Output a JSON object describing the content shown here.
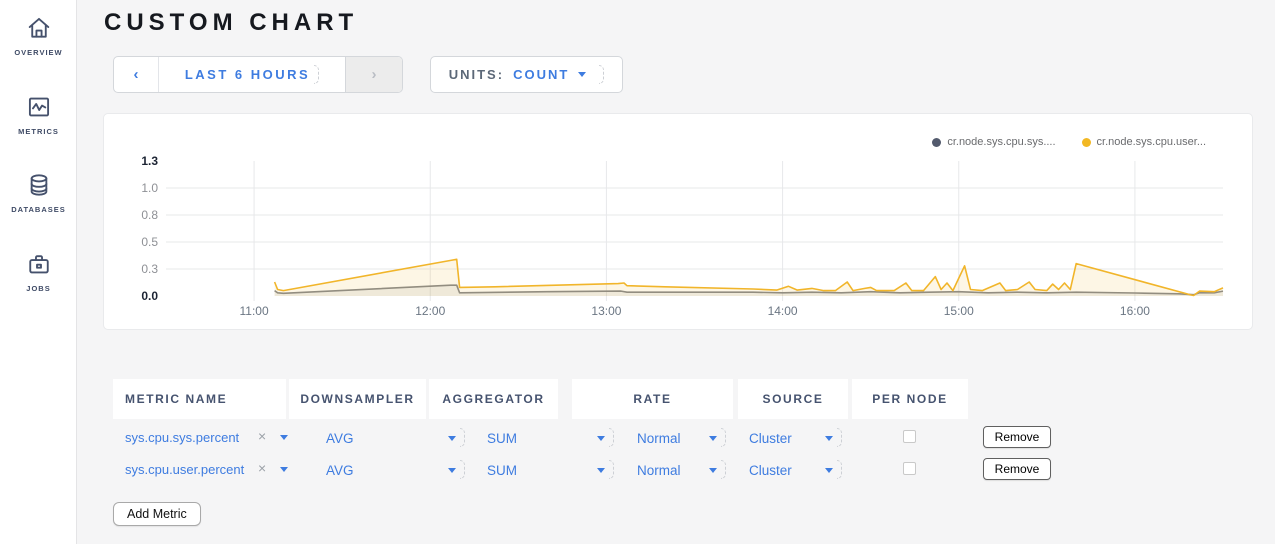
{
  "sidebar": {
    "items": [
      {
        "label": "OVERVIEW",
        "icon": "home-icon"
      },
      {
        "label": "METRICS",
        "icon": "metrics-icon"
      },
      {
        "label": "DATABASES",
        "icon": "database-icon"
      },
      {
        "label": "JOBS",
        "icon": "briefcase-icon"
      }
    ]
  },
  "header": {
    "title": "CUSTOM CHART"
  },
  "toolbar": {
    "prev_arrow": "‹",
    "time_range": "LAST 6 HOURS",
    "next_arrow": "›",
    "units_label": "UNITS:",
    "units_value": "COUNT"
  },
  "chart_data": {
    "type": "area",
    "legend_position": "top-right",
    "grid": true,
    "axis": {
      "x_domain_minutes": [
        0,
        360
      ],
      "y_domain": [
        0,
        1.25
      ]
    },
    "x_ticks": [
      {
        "label": "11:00",
        "t": 30
      },
      {
        "label": "12:00",
        "t": 90
      },
      {
        "label": "13:00",
        "t": 150
      },
      {
        "label": "14:00",
        "t": 210
      },
      {
        "label": "15:00",
        "t": 270
      },
      {
        "label": "16:00",
        "t": 330
      }
    ],
    "y_ticks": [
      {
        "label": "1.3",
        "value": 1.25,
        "bold": true,
        "grid": false
      },
      {
        "label": "1.0",
        "value": 1.0,
        "bold": false,
        "grid": true
      },
      {
        "label": "0.8",
        "value": 0.75,
        "bold": false,
        "grid": true
      },
      {
        "label": "0.5",
        "value": 0.5,
        "bold": false,
        "grid": true
      },
      {
        "label": "0.3",
        "value": 0.25,
        "bold": false,
        "grid": true
      },
      {
        "label": "0.0",
        "value": 0.0,
        "bold": true,
        "grid": false
      }
    ],
    "series": [
      {
        "name": "cr.node.sys.cpu.sys....",
        "color": "#535a6d",
        "line_color": "#86888c",
        "fill_color": "rgba(110,115,125,0.10)",
        "points": [
          [
            37,
            0.05
          ],
          [
            38,
            0.03
          ],
          [
            40,
            0.025
          ],
          [
            97,
            0.1
          ],
          [
            99,
            0.1
          ],
          [
            100,
            0.03
          ],
          [
            130,
            0.04
          ],
          [
            155,
            0.045
          ],
          [
            157,
            0.035
          ],
          [
            200,
            0.035
          ],
          [
            210,
            0.03
          ],
          [
            220,
            0.035
          ],
          [
            230,
            0.03
          ],
          [
            240,
            0.04
          ],
          [
            250,
            0.03
          ],
          [
            260,
            0.035
          ],
          [
            270,
            0.04
          ],
          [
            280,
            0.03
          ],
          [
            290,
            0.035
          ],
          [
            300,
            0.03
          ],
          [
            310,
            0.035
          ],
          [
            330,
            0.028
          ],
          [
            345,
            0.02
          ],
          [
            350,
            0.012
          ],
          [
            352,
            0.03
          ],
          [
            357,
            0.03
          ],
          [
            360,
            0.045
          ]
        ]
      },
      {
        "name": "cr.node.sys.cpu.user...",
        "color": "#f2b824",
        "line_color": "#f1b52a",
        "fill_color": "rgba(241,181,42,0.12)",
        "points": [
          [
            37,
            0.13
          ],
          [
            38,
            0.06
          ],
          [
            40,
            0.05
          ],
          [
            97,
            0.33
          ],
          [
            99,
            0.34
          ],
          [
            100,
            0.08
          ],
          [
            112,
            0.085
          ],
          [
            154,
            0.115
          ],
          [
            156,
            0.12
          ],
          [
            157,
            0.095
          ],
          [
            170,
            0.085
          ],
          [
            200,
            0.065
          ],
          [
            208,
            0.055
          ],
          [
            212,
            0.09
          ],
          [
            215,
            0.055
          ],
          [
            220,
            0.07
          ],
          [
            224,
            0.05
          ],
          [
            228,
            0.05
          ],
          [
            232,
            0.13
          ],
          [
            234,
            0.05
          ],
          [
            238,
            0.07
          ],
          [
            240,
            0.08
          ],
          [
            242,
            0.05
          ],
          [
            248,
            0.05
          ],
          [
            252,
            0.12
          ],
          [
            254,
            0.05
          ],
          [
            258,
            0.05
          ],
          [
            262,
            0.18
          ],
          [
            264,
            0.06
          ],
          [
            266,
            0.12
          ],
          [
            268,
            0.05
          ],
          [
            272,
            0.28
          ],
          [
            274,
            0.06
          ],
          [
            278,
            0.05
          ],
          [
            284,
            0.12
          ],
          [
            286,
            0.05
          ],
          [
            290,
            0.06
          ],
          [
            294,
            0.13
          ],
          [
            296,
            0.06
          ],
          [
            300,
            0.05
          ],
          [
            302,
            0.11
          ],
          [
            304,
            0.06
          ],
          [
            306,
            0.12
          ],
          [
            308,
            0.06
          ],
          [
            310,
            0.3
          ],
          [
            349,
            0.01
          ],
          [
            350,
            0.005
          ],
          [
            352,
            0.045
          ],
          [
            357,
            0.04
          ],
          [
            360,
            0.075
          ]
        ]
      }
    ]
  },
  "table": {
    "headers": [
      "METRIC NAME",
      "DOWNSAMPLER",
      "AGGREGATOR",
      "RATE",
      "SOURCE",
      "PER NODE"
    ],
    "rows": [
      {
        "metric": "sys.cpu.sys.percent",
        "remove_metric": "×",
        "downsampler": "AVG",
        "aggregator": "SUM",
        "rate": "Normal",
        "source": "Cluster",
        "per_node_checked": false,
        "remove_label": "Remove"
      },
      {
        "metric": "sys.cpu.user.percent",
        "remove_metric": "×",
        "downsampler": "AVG",
        "aggregator": "SUM",
        "rate": "Normal",
        "source": "Cluster",
        "per_node_checked": false,
        "remove_label": "Remove"
      }
    ],
    "add_metric_label": "Add Metric"
  }
}
